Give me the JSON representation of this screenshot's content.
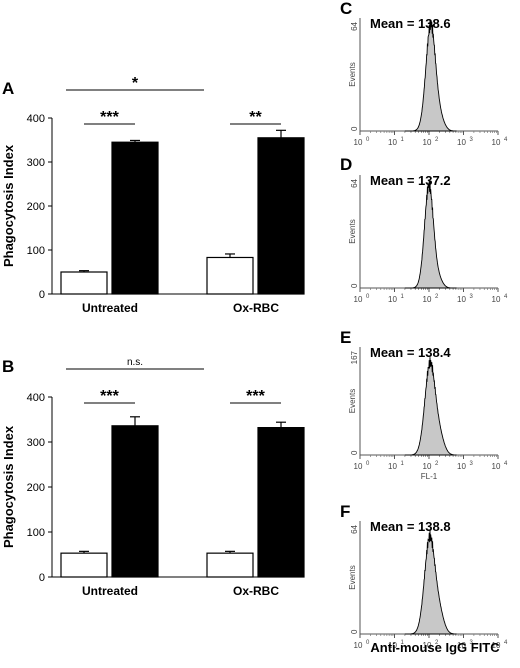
{
  "figure": {
    "x_axis_title": "Anti-mouse IgG FITC"
  },
  "chart_data": [
    {
      "type": "bar",
      "panel": "A",
      "ylabel": "Phagocytosis Index",
      "ylim": [
        0,
        400
      ],
      "yticks": [
        0,
        100,
        200,
        300,
        400
      ],
      "categories": [
        "Untreated",
        "Ox-RBC"
      ],
      "series": [
        {
          "fill": "#ffffff",
          "values": [
            50,
            83
          ],
          "errors": [
            3,
            8
          ]
        },
        {
          "fill": "#000000",
          "values": [
            345,
            355
          ],
          "errors": [
            4,
            17
          ]
        }
      ],
      "brackets": [
        {
          "label": "***",
          "between": "within",
          "category": 0
        },
        {
          "label": "**",
          "between": "within",
          "category": 1
        },
        {
          "label": "*",
          "between": "across"
        }
      ]
    },
    {
      "type": "bar",
      "panel": "B",
      "ylabel": "Phagocytosis Index",
      "ylim": [
        0,
        400
      ],
      "yticks": [
        0,
        100,
        200,
        300,
        400
      ],
      "categories": [
        "Untreated",
        "Ox-RBC"
      ],
      "series": [
        {
          "fill": "#ffffff",
          "values": [
            53,
            53
          ],
          "errors": [
            4,
            4
          ]
        },
        {
          "fill": "#000000",
          "values": [
            336,
            332
          ],
          "errors": [
            20,
            12
          ]
        }
      ],
      "brackets": [
        {
          "label": "***",
          "between": "within",
          "category": 0
        },
        {
          "label": "***",
          "between": "within",
          "category": 1
        },
        {
          "label": "n.s.",
          "between": "across"
        }
      ]
    },
    {
      "type": "area",
      "panel": "C",
      "title": "Mean = 138.6",
      "ylabel": "Events",
      "ylim": [
        0,
        64
      ],
      "xscale": "log",
      "xlim": [
        1,
        10000
      ],
      "xticks": [
        "10",
        "10",
        "10",
        "10",
        "10"
      ],
      "xtick_exponents": [
        "0",
        "1",
        "2",
        "3",
        "4"
      ],
      "xlabel": "",
      "peak_decade": 2.05,
      "peak_height": 60,
      "spread": 0.14,
      "shoulder": 0.1
    },
    {
      "type": "area",
      "panel": "D",
      "title": "Mean = 137.2",
      "ylabel": "Events",
      "ylim": [
        0,
        64
      ],
      "xscale": "log",
      "xlim": [
        1,
        10000
      ],
      "xticks": [
        "10",
        "10",
        "10",
        "10",
        "10"
      ],
      "xtick_exponents": [
        "0",
        "1",
        "2",
        "3",
        "4"
      ],
      "xlabel": "",
      "peak_decade": 2.0,
      "peak_height": 58,
      "spread": 0.13,
      "shoulder": 0.08
    },
    {
      "type": "area",
      "panel": "E",
      "title": "Mean = 138.4",
      "ylabel": "Events",
      "ylim": [
        0,
        167
      ],
      "xscale": "log",
      "xlim": [
        1,
        10000
      ],
      "xticks": [
        "10",
        "10",
        "10",
        "10",
        "10"
      ],
      "xtick_exponents": [
        "0",
        "1",
        "2",
        "3",
        "4"
      ],
      "xlabel": "FL-1",
      "peak_decade": 2.03,
      "peak_height": 140,
      "spread": 0.15,
      "shoulder": 0.18
    },
    {
      "type": "area",
      "panel": "F",
      "title": "Mean = 138.8",
      "ylabel": "Events",
      "ylim": [
        0,
        64
      ],
      "xscale": "log",
      "xlim": [
        1,
        10000
      ],
      "xticks": [
        "10",
        "10",
        "10",
        "10",
        "10"
      ],
      "xtick_exponents": [
        "0",
        "1",
        "2",
        "3",
        "4"
      ],
      "xlabel": "",
      "peak_decade": 2.02,
      "peak_height": 54,
      "spread": 0.15,
      "shoulder": 0.2
    }
  ]
}
